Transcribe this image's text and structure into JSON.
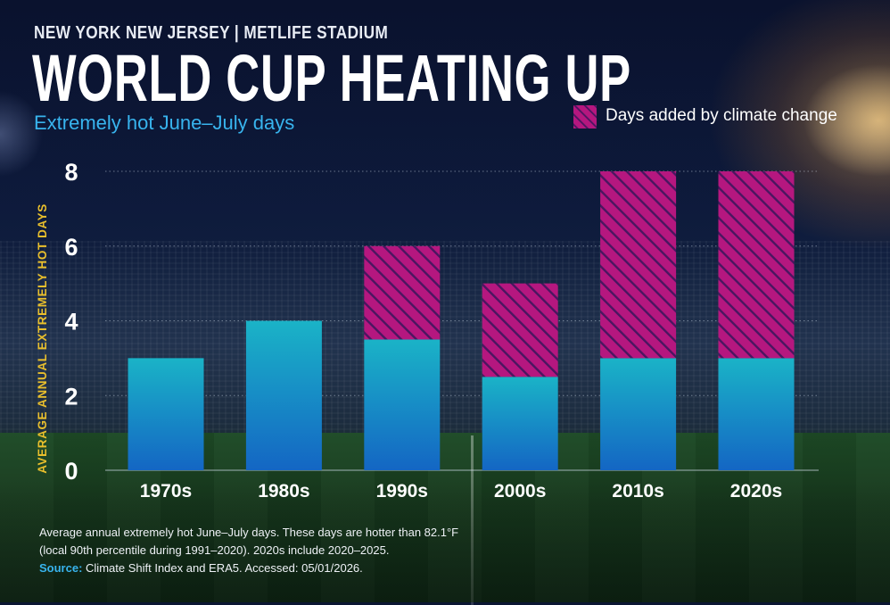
{
  "header": {
    "kicker": "NEW YORK NEW JERSEY  |  METLIFE STADIUM",
    "title": "WORLD CUP HEATING UP",
    "subtitle": "Extremely hot June–July days"
  },
  "legend": {
    "label": "Days added by climate change"
  },
  "footnote": {
    "line1": "Average annual extremely hot June–July days. These days are hotter than 82.1°F",
    "line2": "(local 90th percentile during 1991–2020). 2020s include 2020–2025.",
    "source_label": "Source:",
    "source_text": "Climate Shift Index and ERA5. Accessed: 05/01/2026."
  },
  "colors": {
    "baseline_top": "#1ab3c7",
    "baseline_bottom": "#1466c4",
    "climate_fill": "#b5177f",
    "climate_stripe": "#4a1660",
    "axis_label": "#e9bf2c",
    "accent_blue": "#38b4ee"
  },
  "chart_data": {
    "type": "bar",
    "stacked": true,
    "categories": [
      "1970s",
      "1980s",
      "1990s",
      "2000s",
      "2010s",
      "2020s"
    ],
    "series": [
      {
        "values": [
          3,
          4,
          3.5,
          2.5,
          3,
          3
        ]
      },
      {
        "name": "Days added by climate change",
        "values": [
          0,
          0,
          2.5,
          2.5,
          5,
          5
        ]
      }
    ],
    "ylabel": "AVERAGE ANNUAL EXTREMELY HOT DAYS",
    "xlabel": "",
    "ylim": [
      0,
      8
    ],
    "yticks": [
      0,
      2,
      4,
      6,
      8
    ],
    "grid": true,
    "legend_position": "top-right"
  }
}
